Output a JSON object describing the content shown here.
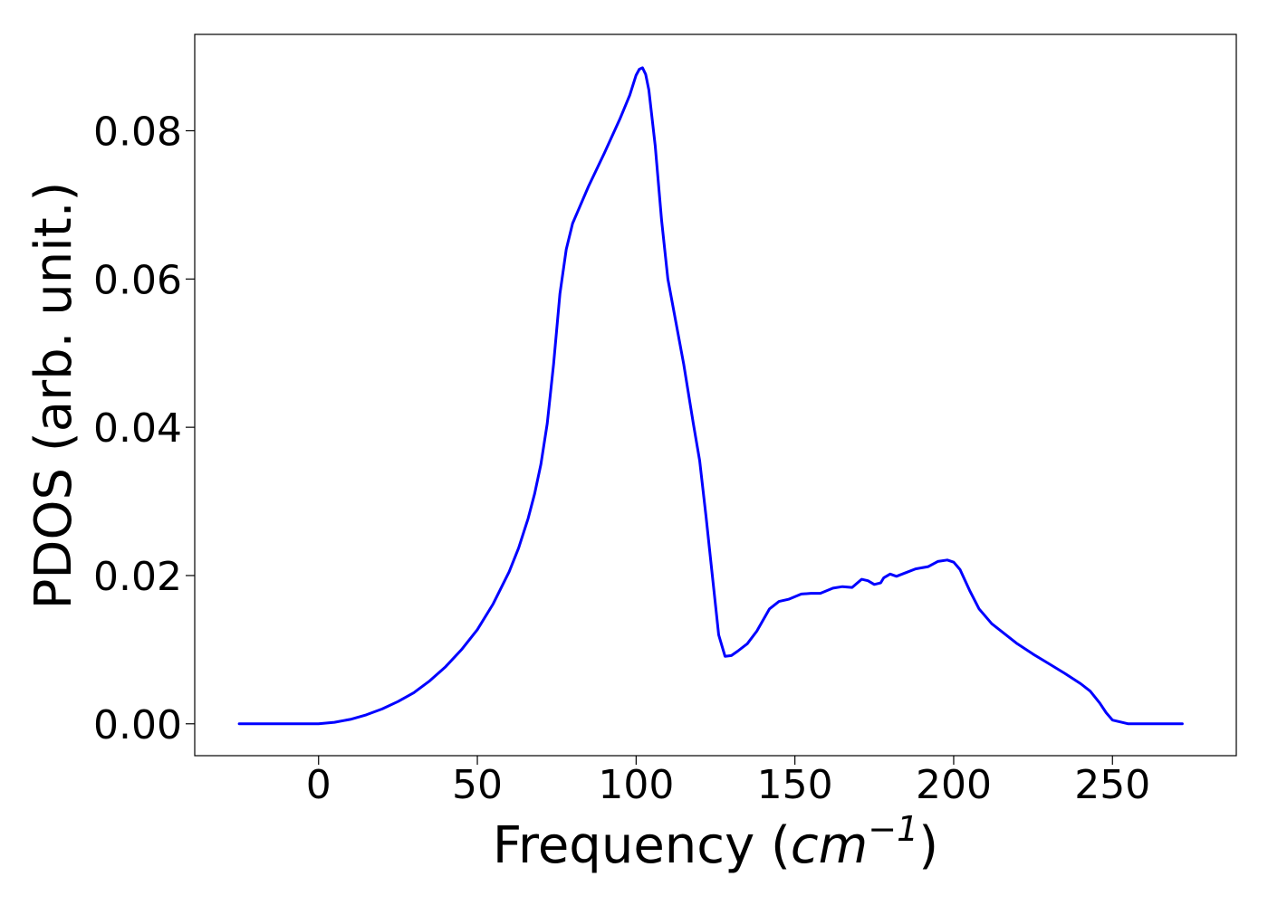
{
  "chart_data": {
    "type": "line",
    "title": "",
    "xlabel": {
      "text": "Frequency (",
      "math_base": "cm",
      "math_sup": "−1",
      "suffix": ")"
    },
    "ylabel": "PDOS (arb. unit.)",
    "xlim": [
      -39,
      289
    ],
    "ylim": [
      -0.0043,
      0.093
    ],
    "xticks": [
      0,
      50,
      100,
      150,
      200,
      250
    ],
    "xtick_labels": [
      "0",
      "50",
      "100",
      "150",
      "200",
      "250"
    ],
    "yticks": [
      0.0,
      0.02,
      0.04,
      0.06,
      0.08
    ],
    "ytick_labels": [
      "0.00",
      "0.02",
      "0.04",
      "0.06",
      "0.08"
    ],
    "grid": false,
    "legend": "none",
    "series": [
      {
        "color": "#0000ff",
        "x": [
          -25,
          -15,
          -5,
          0,
          5,
          10,
          15,
          20,
          25,
          30,
          35,
          40,
          45,
          50,
          55,
          60,
          63,
          66,
          68,
          70,
          72,
          74,
          76,
          78,
          80,
          85,
          90,
          95,
          98,
          100,
          101,
          102,
          103,
          104,
          106,
          108,
          110,
          115,
          118,
          120,
          122,
          124,
          126,
          128,
          130,
          132,
          135,
          138,
          142,
          145,
          148,
          152,
          155,
          158,
          162,
          165,
          168,
          171,
          173,
          175,
          177,
          178,
          180,
          182,
          185,
          188,
          192,
          195,
          198,
          200,
          202,
          205,
          208,
          212,
          215,
          220,
          225,
          230,
          235,
          240,
          243,
          246,
          248,
          250,
          255,
          260,
          265,
          272
        ],
        "y": [
          0.0,
          0.0,
          0.0,
          0.0,
          0.0002,
          0.0006,
          0.0012,
          0.002,
          0.003,
          0.0042,
          0.0058,
          0.0077,
          0.01,
          0.0127,
          0.0162,
          0.0205,
          0.0237,
          0.0277,
          0.031,
          0.035,
          0.0405,
          0.0485,
          0.058,
          0.064,
          0.0675,
          0.0725,
          0.077,
          0.0817,
          0.0848,
          0.0875,
          0.0883,
          0.0885,
          0.0876,
          0.0855,
          0.078,
          0.068,
          0.06,
          0.0485,
          0.0405,
          0.0355,
          0.028,
          0.02,
          0.012,
          0.0091,
          0.0092,
          0.0098,
          0.0108,
          0.0125,
          0.0155,
          0.0165,
          0.0168,
          0.0175,
          0.0176,
          0.0176,
          0.0183,
          0.0185,
          0.0184,
          0.0195,
          0.0193,
          0.0188,
          0.019,
          0.0197,
          0.0202,
          0.0199,
          0.0204,
          0.0209,
          0.0212,
          0.0219,
          0.0221,
          0.0218,
          0.0208,
          0.018,
          0.0155,
          0.0135,
          0.0125,
          0.0108,
          0.0094,
          0.0081,
          0.0068,
          0.0054,
          0.0044,
          0.0028,
          0.0015,
          0.0005,
          0.0,
          0.0,
          0.0,
          0.0
        ]
      }
    ]
  }
}
